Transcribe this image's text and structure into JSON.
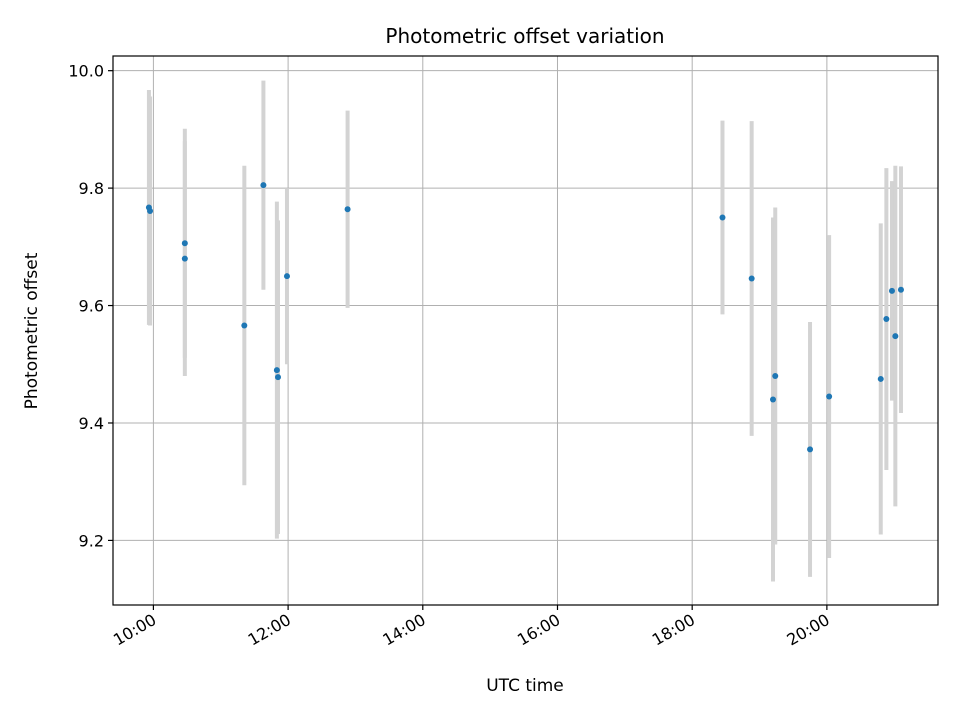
{
  "chart_data": {
    "type": "scatter",
    "title": "Photometric offset variation",
    "xlabel": "UTC time",
    "ylabel": "Photometric offset",
    "x_axis": "time",
    "xlim": [
      "09:24",
      "21:39"
    ],
    "ylim": [
      9.09,
      10.025
    ],
    "xticks": [
      "10:00",
      "12:00",
      "14:00",
      "16:00",
      "18:00",
      "20:00"
    ],
    "yticks": [
      9.2,
      9.4,
      9.6,
      9.8,
      10.0
    ],
    "ytick_labels": [
      "9.2",
      "9.4",
      "9.6",
      "9.8",
      "10.0"
    ],
    "grid": true,
    "colors": {
      "marker": "#1f77b4",
      "errorbar": "#d3d3d3",
      "grid": "#b0b0b0"
    },
    "points": [
      {
        "time": "09:56",
        "y": 9.767,
        "err": 0.2
      },
      {
        "time": "09:57",
        "y": 9.761,
        "err": 0.195
      },
      {
        "time": "10:28",
        "y": 9.706,
        "err": 0.195
      },
      {
        "time": "10:28",
        "y": 9.68,
        "err": 0.2
      },
      {
        "time": "11:21",
        "y": 9.566,
        "err": 0.272
      },
      {
        "time": "11:38",
        "y": 9.805,
        "err": 0.178
      },
      {
        "time": "11:50",
        "y": 9.49,
        "err": 0.287
      },
      {
        "time": "11:51",
        "y": 9.478,
        "err": 0.267
      },
      {
        "time": "11:59",
        "y": 9.65,
        "err": 0.15
      },
      {
        "time": "12:53",
        "y": 9.764,
        "err": 0.168
      },
      {
        "time": "18:27",
        "y": 9.75,
        "err": 0.165
      },
      {
        "time": "18:53",
        "y": 9.646,
        "err": 0.268
      },
      {
        "time": "19:12",
        "y": 9.44,
        "err": 0.31
      },
      {
        "time": "19:14",
        "y": 9.48,
        "err": 0.287
      },
      {
        "time": "19:45",
        "y": 9.355,
        "err": 0.217
      },
      {
        "time": "20:02",
        "y": 9.445,
        "err": 0.275
      },
      {
        "time": "20:48",
        "y": 9.475,
        "err": 0.265
      },
      {
        "time": "20:53",
        "y": 9.577,
        "err": 0.257
      },
      {
        "time": "20:58",
        "y": 9.625,
        "err": 0.187
      },
      {
        "time": "21:01",
        "y": 9.548,
        "err": 0.29
      },
      {
        "time": "21:06",
        "y": 9.627,
        "err": 0.21
      }
    ]
  }
}
